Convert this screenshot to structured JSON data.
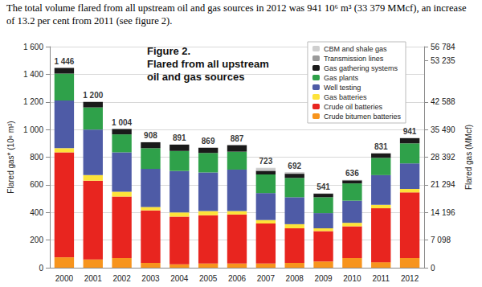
{
  "chart_data": {
    "type": "bar",
    "stacked": true,
    "grid": true,
    "legend": "top-right",
    "annotation": "The total volume flared from all upstream oil and gas sources in 2012 was 941 10⁶ m³ (33 379 MMcf), an increase of 13.2 per cent from 2011 (see figure 2).",
    "title": "Figure 2.",
    "subtitle": "Flared from all upstream oil and gas sources",
    "y_label": "Flared gas* (10⁶ m³)",
    "y2_label": "Flared gas (MMcf)",
    "categories": [
      "2000",
      "2001",
      "2002",
      "2003",
      "2004",
      "2005",
      "2006",
      "2007",
      "2008",
      "2009",
      "2010",
      "2011",
      "2012"
    ],
    "series": [
      {
        "name": "Crude bitumen batteries",
        "color": "#f7941d",
        "values": [
          75,
          60,
          70,
          35,
          25,
          30,
          30,
          30,
          35,
          45,
          70,
          40,
          70
        ]
      },
      {
        "name": "Crude oil batteries",
        "color": "#e8251f",
        "values": [
          760,
          570,
          445,
          380,
          345,
          350,
          355,
          290,
          250,
          220,
          230,
          390,
          475
        ]
      },
      {
        "name": "Gas batteries",
        "color": "#fde33a",
        "values": [
          30,
          40,
          35,
          25,
          30,
          30,
          25,
          25,
          30,
          20,
          25,
          25,
          25
        ]
      },
      {
        "name": "Well testing",
        "color": "#4e5ba6",
        "values": [
          345,
          330,
          285,
          275,
          300,
          280,
          300,
          195,
          195,
          110,
          160,
          215,
          185
        ]
      },
      {
        "name": "Gas plants",
        "color": "#2fa14a",
        "values": [
          195,
          160,
          130,
          150,
          145,
          140,
          130,
          135,
          140,
          115,
          125,
          125,
          145
        ]
      },
      {
        "name": "Gas gathering systems",
        "color": "#1a1a1a",
        "values": [
          41,
          40,
          39,
          43,
          46,
          39,
          47,
          25,
          30,
          25,
          22,
          32,
          37
        ]
      },
      {
        "name": "Transmission lines",
        "color": "#9a9a9a",
        "values": [
          0,
          0,
          0,
          0,
          0,
          0,
          0,
          8,
          4,
          2,
          2,
          2,
          2
        ]
      },
      {
        "name": "CBM and shale gas",
        "color": "#cfcfcf",
        "values": [
          0,
          0,
          0,
          0,
          0,
          0,
          0,
          15,
          8,
          4,
          2,
          2,
          2
        ]
      }
    ],
    "totals": [
      1446,
      1200,
      1004,
      908,
      891,
      869,
      887,
      723,
      692,
      541,
      636,
      831,
      941
    ],
    "total_labels": [
      "1 446",
      "1 200",
      "1 004",
      "908",
      "891",
      "869",
      "887",
      "723",
      "692",
      "541",
      "636",
      "831",
      "941"
    ],
    "ylim": [
      0,
      1600
    ],
    "yticks": [
      0,
      200,
      400,
      600,
      800,
      {
        "value": 1000,
        "label": "1 000"
      },
      {
        "value": 1200,
        "label": "1 200"
      },
      {
        "value": 1400,
        "label": "1 400"
      },
      {
        "value": 1600,
        "label": "1 600"
      }
    ],
    "y2lim": [
      0,
      56784
    ],
    "y2ticks": [
      0,
      {
        "value": 7098,
        "label": "7 098"
      },
      {
        "value": 14196,
        "label": "14 196"
      },
      {
        "value": 21294,
        "label": "21 294"
      },
      {
        "value": 28392,
        "label": "28 392"
      },
      {
        "value": 35490,
        "label": "35 490"
      },
      {
        "value": 42588,
        "label": "42 588"
      },
      {
        "value": 53235,
        "label": "53 235"
      },
      {
        "value": 56784,
        "label": "56 784"
      }
    ]
  }
}
